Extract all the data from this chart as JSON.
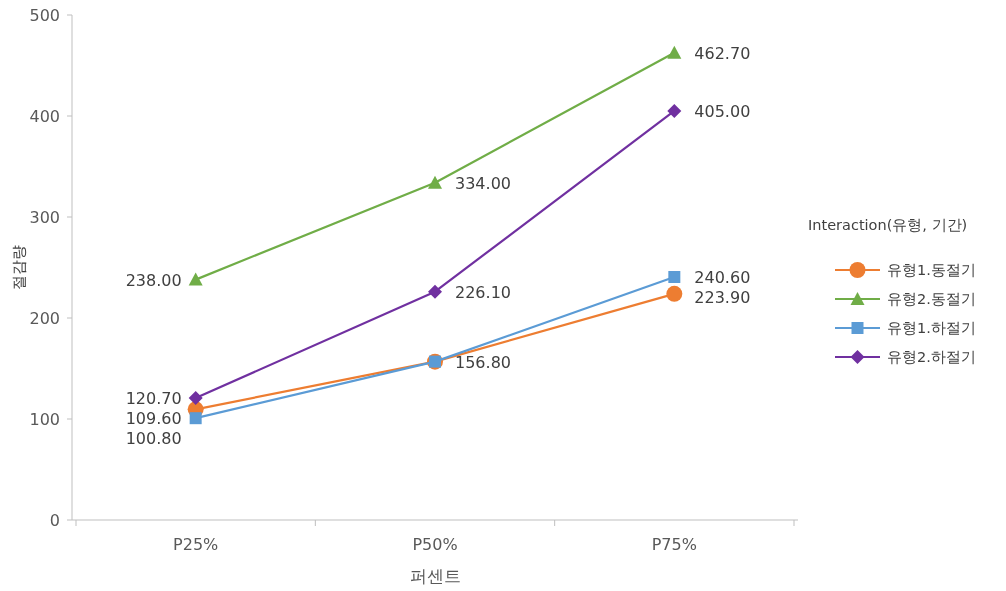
{
  "chart_data": {
    "type": "line",
    "xlabel": "퍼센트",
    "ylabel": "절감량",
    "legend_title": "Interaction(유형, 기간)",
    "legend": "right",
    "grid": false,
    "categories": [
      "P25%",
      "P50%",
      "P75%"
    ],
    "ylim": [
      0,
      500
    ],
    "yticks": [
      0,
      100,
      200,
      300,
      400,
      500
    ],
    "series": [
      {
        "name": "유형1.동절기",
        "color": "#ed7d31",
        "marker": "circle",
        "values": [
          109.6,
          156.8,
          223.9
        ],
        "value_labels": [
          "109.60",
          null,
          "223.90"
        ]
      },
      {
        "name": "유형2.동절기",
        "color": "#70ad47",
        "marker": "triangle",
        "values": [
          238.0,
          334.0,
          462.7
        ],
        "value_labels": [
          "238.00",
          "334.00",
          "462.70"
        ]
      },
      {
        "name": "유형1.하절기",
        "color": "#5b9bd5",
        "marker": "square",
        "values": [
          100.8,
          156.8,
          240.6
        ],
        "value_labels": [
          "100.80",
          "156.80",
          "240.60"
        ]
      },
      {
        "name": "유형2.하절기",
        "color": "#7030a0",
        "marker": "diamond",
        "values": [
          120.7,
          226.1,
          405.0
        ],
        "value_labels": [
          "120.70",
          "226.10",
          "405.00"
        ]
      }
    ]
  }
}
